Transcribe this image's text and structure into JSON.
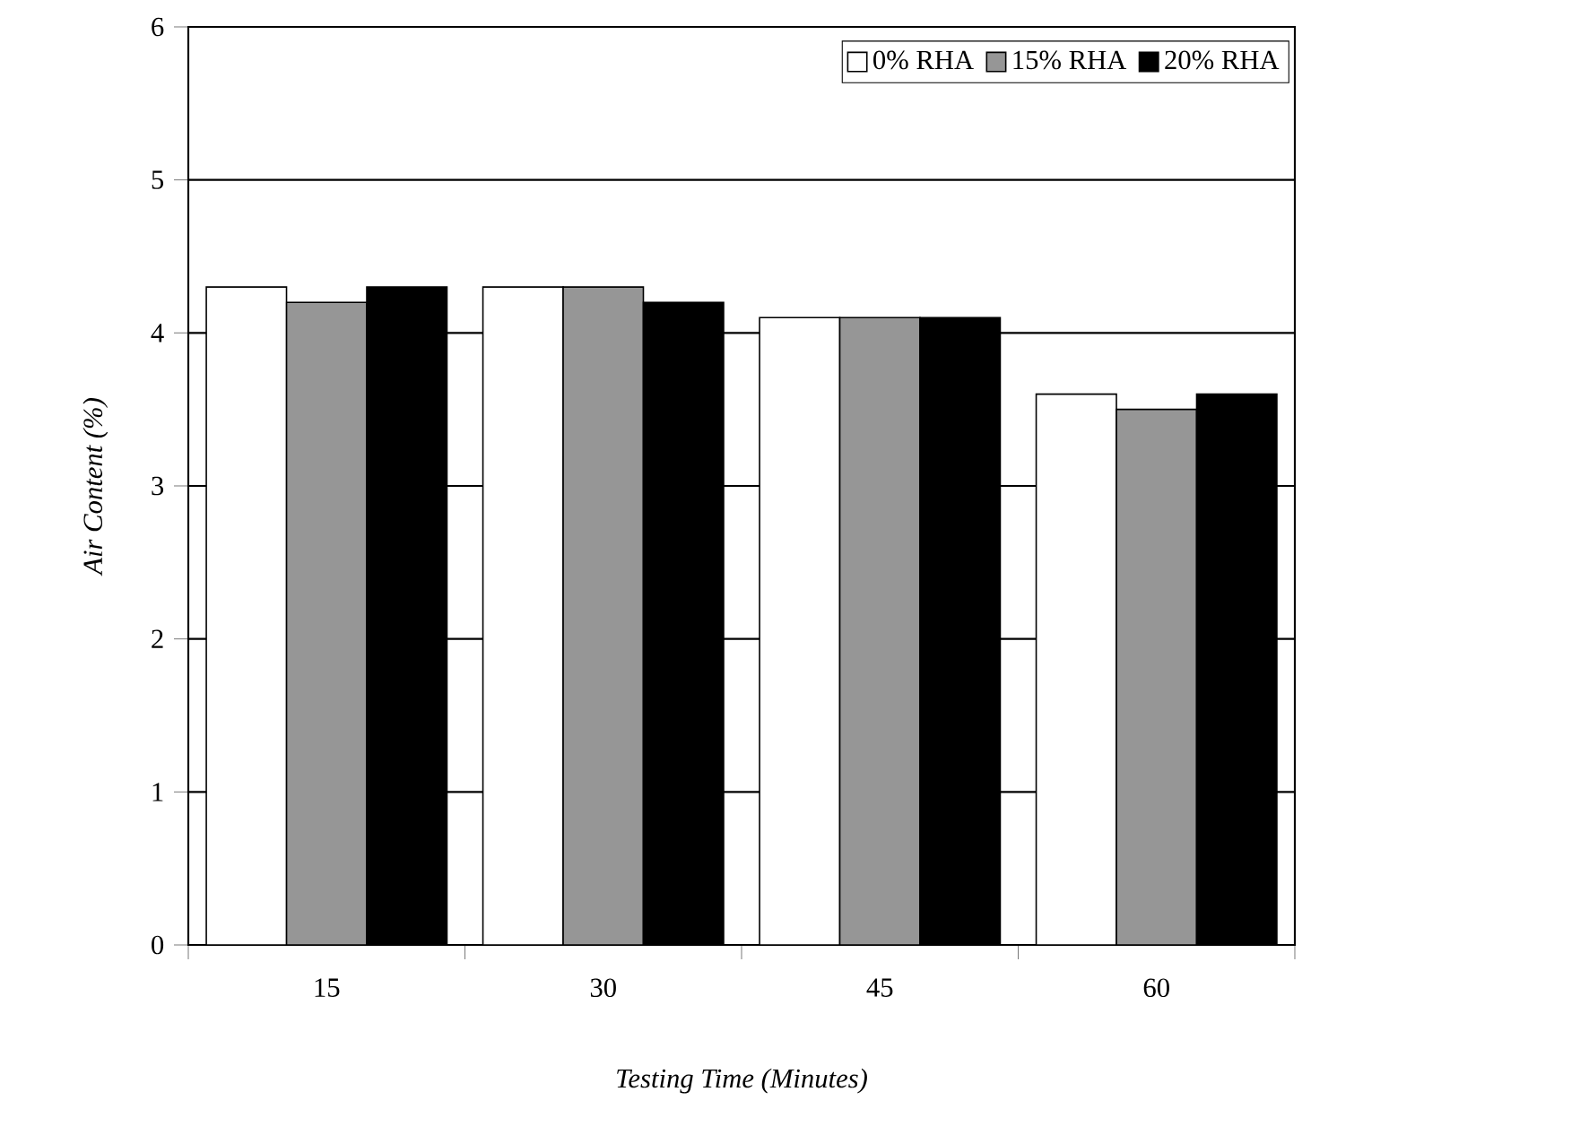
{
  "chart_data": {
    "type": "bar",
    "xlabel": "Testing Time (Minutes)",
    "ylabel": "Air Content (%)",
    "categories": [
      "15",
      "30",
      "45",
      "60"
    ],
    "series": [
      {
        "name": "0% RHA",
        "color": "#ffffff",
        "values": [
          4.3,
          4.3,
          4.1,
          3.6
        ]
      },
      {
        "name": "15% RHA",
        "color": "#969696",
        "values": [
          4.2,
          4.3,
          4.1,
          3.5
        ]
      },
      {
        "name": "20% RHA",
        "color": "#000000",
        "values": [
          4.3,
          4.2,
          4.1,
          3.6
        ]
      }
    ],
    "ylim": [
      0,
      6
    ],
    "yticks": [
      0,
      1,
      2,
      3,
      4,
      5,
      6
    ],
    "grid": "y",
    "legend": "top right"
  }
}
